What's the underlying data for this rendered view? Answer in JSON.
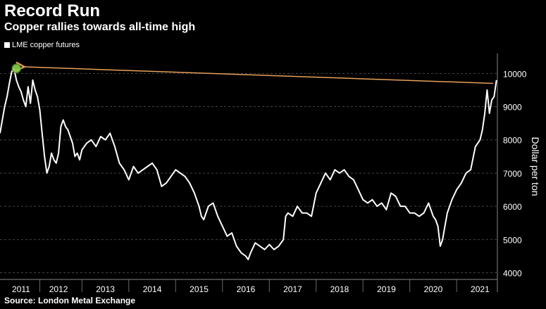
{
  "chart_data": {
    "type": "line",
    "title": "Record Run",
    "subtitle": "Copper rallies towards all-time high",
    "ylabel": "Dollar per ton",
    "source": "Source: London Metal Exchange",
    "ylim": [
      3800,
      10600
    ],
    "xlim": [
      2010.75,
      2021.37
    ],
    "legend_placement": "top-left",
    "grid": true,
    "line_color": "#ffffff",
    "arrow_color": "#e8a05a",
    "marker_color": "#8ed14b",
    "x_ticks": [
      "2011",
      "2012",
      "2013",
      "2014",
      "2015",
      "2016",
      "2017",
      "2018",
      "2019",
      "2020",
      "2021"
    ],
    "x_tick_positions": [
      2011.2,
      2012,
      2013,
      2014,
      2015,
      2016,
      2017,
      2018,
      2019,
      2020,
      2021
    ],
    "y_ticks": [
      4000,
      5000,
      6000,
      7000,
      8000,
      9000,
      10000
    ],
    "series": [
      {
        "name": "LME copper futures",
        "x": [
          2010.75,
          2010.8,
          2010.85,
          2010.9,
          2010.95,
          2011.0,
          2011.05,
          2011.1,
          2011.15,
          2011.2,
          2011.25,
          2011.3,
          2011.35,
          2011.4,
          2011.45,
          2011.5,
          2011.55,
          2011.6,
          2011.65,
          2011.7,
          2011.75,
          2011.8,
          2011.85,
          2011.9,
          2011.95,
          2012.0,
          2012.05,
          2012.1,
          2012.15,
          2012.2,
          2012.25,
          2012.3,
          2012.35,
          2012.4,
          2012.45,
          2012.5,
          2012.6,
          2012.7,
          2012.8,
          2012.9,
          2013.0,
          2013.1,
          2013.2,
          2013.3,
          2013.4,
          2013.5,
          2013.6,
          2013.7,
          2013.8,
          2013.9,
          2014.0,
          2014.1,
          2014.2,
          2014.3,
          2014.4,
          2014.5,
          2014.6,
          2014.7,
          2014.8,
          2014.9,
          2015.0,
          2015.05,
          2015.1,
          2015.2,
          2015.3,
          2015.4,
          2015.5,
          2015.6,
          2015.7,
          2015.8,
          2015.9,
          2016.0,
          2016.05,
          2016.1,
          2016.2,
          2016.3,
          2016.4,
          2016.5,
          2016.6,
          2016.7,
          2016.8,
          2016.85,
          2016.9,
          2017.0,
          2017.1,
          2017.2,
          2017.3,
          2017.4,
          2017.5,
          2017.6,
          2017.7,
          2017.8,
          2017.9,
          2018.0,
          2018.1,
          2018.2,
          2018.3,
          2018.4,
          2018.5,
          2018.6,
          2018.7,
          2018.8,
          2018.9,
          2019.0,
          2019.1,
          2019.2,
          2019.3,
          2019.4,
          2019.5,
          2019.6,
          2019.7,
          2019.8,
          2019.9,
          2020.0,
          2020.05,
          2020.1,
          2020.15,
          2020.2,
          2020.25,
          2020.3,
          2020.4,
          2020.5,
          2020.6,
          2020.7,
          2020.8,
          2020.9,
          2021.0,
          2021.05,
          2021.1,
          2021.15,
          2021.2,
          2021.25,
          2021.3,
          2021.35
        ],
        "values": [
          8200,
          8600,
          9000,
          9300,
          9700,
          10050,
          10150,
          9800,
          9600,
          9450,
          9200,
          9000,
          9600,
          9100,
          9800,
          9500,
          9300,
          8900,
          8200,
          7500,
          7000,
          7200,
          7600,
          7400,
          7300,
          7600,
          8400,
          8600,
          8400,
          8300,
          8100,
          7900,
          7500,
          7600,
          7400,
          7700,
          7900,
          8000,
          7800,
          8100,
          8000,
          8200,
          7800,
          7300,
          7100,
          6800,
          7200,
          7000,
          7100,
          7200,
          7300,
          7100,
          6600,
          6700,
          6900,
          7100,
          7000,
          6900,
          6700,
          6400,
          6000,
          5700,
          5600,
          6000,
          6100,
          5700,
          5400,
          5100,
          5200,
          4800,
          4600,
          4500,
          4400,
          4600,
          4900,
          4800,
          4700,
          4850,
          4700,
          4800,
          5000,
          5700,
          5800,
          5700,
          6000,
          5800,
          5800,
          5700,
          6400,
          6700,
          7000,
          6800,
          7100,
          7000,
          7100,
          6900,
          6800,
          6500,
          6200,
          6100,
          6200,
          6000,
          6100,
          5900,
          6400,
          6300,
          6000,
          6000,
          5800,
          5800,
          5700,
          5800,
          6100,
          5700,
          5600,
          5400,
          4800,
          5000,
          5400,
          5800,
          6200,
          6500,
          6700,
          7000,
          7100,
          7800,
          8000,
          8300,
          8800,
          9500,
          8800,
          9200,
          9300,
          9800
        ]
      }
    ],
    "annotations": {
      "arrow": {
        "from": [
          2021.28,
          9700
        ],
        "to": [
          2011.25,
          10200
        ]
      },
      "marker": [
        2011.1,
        10150
      ]
    }
  }
}
